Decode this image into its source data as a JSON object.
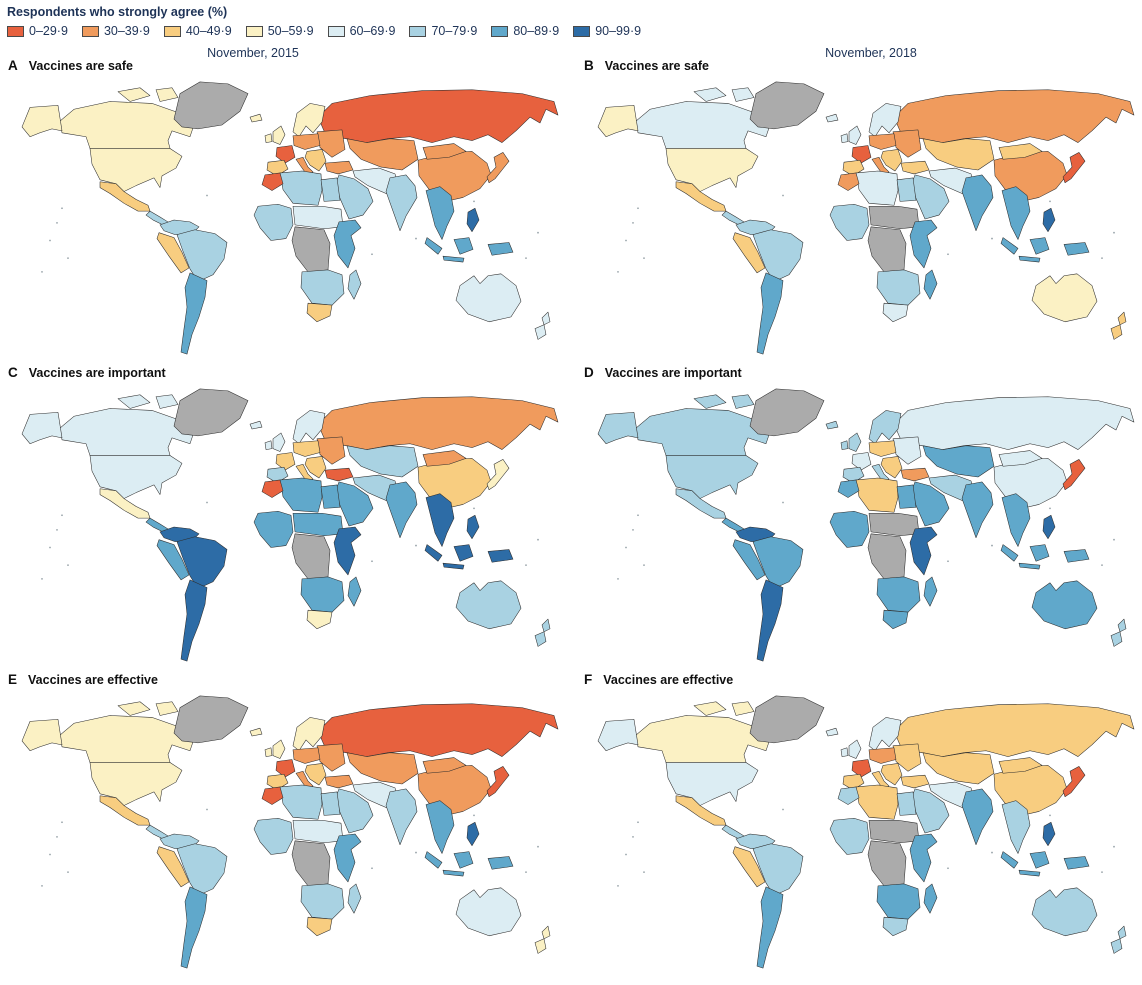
{
  "figure": {
    "column_headers": [
      "November, 2015",
      "November, 2018"
    ],
    "background_color": "#ffffff",
    "ocean_color": "#ffffff",
    "border_color": "#2d2d2d"
  },
  "legend": {
    "title": "Respondents who strongly agree (%)",
    "no_data_color": "#ababab",
    "bins": [
      {
        "label": "0–29·9",
        "color": "#e7613e"
      },
      {
        "label": "30–39·9",
        "color": "#f09b5d"
      },
      {
        "label": "40–49·9",
        "color": "#f8cd80"
      },
      {
        "label": "50–59·9",
        "color": "#fbf1c4"
      },
      {
        "label": "60–69·9",
        "color": "#dcedf3"
      },
      {
        "label": "70–79·9",
        "color": "#a9d2e2"
      },
      {
        "label": "80–89·9",
        "color": "#60a8cb"
      },
      {
        "label": "90–99·9",
        "color": "#2d6ca6"
      }
    ]
  },
  "panels": [
    {
      "letter": "A",
      "title": "Vaccines are safe",
      "column": "November, 2015",
      "regions": {
        "greenland": -1,
        "iceland": 3,
        "canada": 3,
        "usa": 3,
        "mexico": 2,
        "central_america": 5,
        "colombia_venezuela": 5,
        "andean": 2,
        "brazil": 5,
        "argentina_chile": 6,
        "uk_ireland": 3,
        "scandinavia": 3,
        "iberia": 2,
        "france": 0,
        "central_europe": 1,
        "italy": 1,
        "balkans": 2,
        "eastern_europe": 1,
        "turkey": 1,
        "russia": 0,
        "central_asia": 1,
        "iran": 4,
        "middle_east": 5,
        "china": 1,
        "mongolia": 1,
        "india": 5,
        "se_asia": 6,
        "indonesia": 6,
        "philippines": 7,
        "japan": 1,
        "north_africa_west": 0,
        "north_africa": 5,
        "egypt": 5,
        "west_africa": 5,
        "sahel_sudan": 4,
        "east_africa": 6,
        "central_africa": -1,
        "southern_africa": 5,
        "south_africa": 2,
        "madagascar": 5,
        "australia": 4,
        "new_zealand": 4
      }
    },
    {
      "letter": "B",
      "title": "Vaccines are safe",
      "column": "November, 2018",
      "regions": {
        "greenland": -1,
        "iceland": 4,
        "canada": 4,
        "usa": 3,
        "mexico": 2,
        "central_america": 5,
        "colombia_venezuela": 5,
        "andean": 2,
        "brazil": 5,
        "argentina_chile": 6,
        "uk_ireland": 4,
        "scandinavia": 4,
        "iberia": 2,
        "france": 0,
        "central_europe": 1,
        "italy": 1,
        "balkans": 2,
        "eastern_europe": 1,
        "turkey": 2,
        "russia": 1,
        "central_asia": 2,
        "iran": 4,
        "middle_east": 5,
        "china": 1,
        "mongolia": 2,
        "india": 6,
        "se_asia": 6,
        "indonesia": 6,
        "philippines": 7,
        "japan": 0,
        "north_africa_west": 1,
        "north_africa": 4,
        "egypt": 5,
        "west_africa": 5,
        "sahel_sudan": -1,
        "east_africa": 6,
        "central_africa": -1,
        "southern_africa": 5,
        "south_africa": 4,
        "madagascar": 6,
        "australia": 3,
        "new_zealand": 2
      }
    },
    {
      "letter": "C",
      "title": "Vaccines are important",
      "column": "November, 2015",
      "regions": {
        "greenland": -1,
        "iceland": 4,
        "canada": 4,
        "usa": 4,
        "mexico": 3,
        "central_america": 6,
        "colombia_venezuela": 7,
        "andean": 6,
        "brazil": 7,
        "argentina_chile": 7,
        "uk_ireland": 4,
        "scandinavia": 4,
        "iberia": 5,
        "france": 2,
        "central_europe": 2,
        "italy": 2,
        "balkans": 2,
        "eastern_europe": 1,
        "turkey": 0,
        "russia": 1,
        "central_asia": 5,
        "iran": 5,
        "middle_east": 6,
        "china": 2,
        "mongolia": 1,
        "india": 6,
        "se_asia": 7,
        "indonesia": 7,
        "philippines": 7,
        "japan": 3,
        "north_africa_west": 0,
        "north_africa": 6,
        "egypt": 6,
        "west_africa": 6,
        "sahel_sudan": 6,
        "east_africa": 7,
        "central_africa": -1,
        "southern_africa": 6,
        "south_africa": 3,
        "madagascar": 6,
        "australia": 5,
        "new_zealand": 5
      }
    },
    {
      "letter": "D",
      "title": "Vaccines are important",
      "column": "November, 2018",
      "regions": {
        "greenland": -1,
        "iceland": 5,
        "canada": 5,
        "usa": 5,
        "mexico": 5,
        "central_america": 6,
        "colombia_venezuela": 7,
        "andean": 6,
        "brazil": 6,
        "argentina_chile": 7,
        "uk_ireland": 5,
        "scandinavia": 5,
        "iberia": 5,
        "france": 4,
        "central_europe": 2,
        "italy": 5,
        "balkans": 2,
        "eastern_europe": 4,
        "turkey": 1,
        "russia": 4,
        "central_asia": 6,
        "iran": 5,
        "middle_east": 6,
        "china": 4,
        "mongolia": 4,
        "india": 6,
        "se_asia": 6,
        "indonesia": 6,
        "philippines": 7,
        "japan": 0,
        "north_africa_west": 6,
        "north_africa": 2,
        "egypt": 6,
        "west_africa": 6,
        "sahel_sudan": -1,
        "east_africa": 7,
        "central_africa": -1,
        "southern_africa": 6,
        "south_africa": 6,
        "madagascar": 6,
        "australia": 6,
        "new_zealand": 5
      }
    },
    {
      "letter": "E",
      "title": "Vaccines are effective",
      "column": "November, 2015",
      "regions": {
        "greenland": -1,
        "iceland": 3,
        "canada": 3,
        "usa": 3,
        "mexico": 2,
        "central_america": 5,
        "colombia_venezuela": 5,
        "andean": 2,
        "brazil": 5,
        "argentina_chile": 6,
        "uk_ireland": 3,
        "scandinavia": 3,
        "iberia": 2,
        "france": 0,
        "central_europe": 1,
        "italy": 1,
        "balkans": 2,
        "eastern_europe": 1,
        "turkey": 1,
        "russia": 0,
        "central_asia": 1,
        "iran": 4,
        "middle_east": 5,
        "china": 1,
        "mongolia": 1,
        "india": 5,
        "se_asia": 6,
        "indonesia": 6,
        "philippines": 7,
        "japan": 0,
        "north_africa_west": 0,
        "north_africa": 5,
        "egypt": 5,
        "west_africa": 5,
        "sahel_sudan": 4,
        "east_africa": 6,
        "central_africa": -1,
        "southern_africa": 5,
        "south_africa": 2,
        "madagascar": 5,
        "australia": 4,
        "new_zealand": 3
      }
    },
    {
      "letter": "F",
      "title": "Vaccines are effective",
      "column": "November, 2018",
      "regions": {
        "greenland": -1,
        "iceland": 4,
        "canada": 3,
        "usa": 4,
        "mexico": 2,
        "central_america": 5,
        "colombia_venezuela": 5,
        "andean": 2,
        "brazil": 5,
        "argentina_chile": 6,
        "uk_ireland": 4,
        "scandinavia": 4,
        "iberia": 2,
        "france": 0,
        "central_europe": 1,
        "italy": 2,
        "balkans": 2,
        "eastern_europe": 2,
        "turkey": 2,
        "russia": 2,
        "central_asia": 2,
        "iran": 4,
        "middle_east": 5,
        "china": 2,
        "mongolia": 2,
        "india": 6,
        "se_asia": 5,
        "indonesia": 6,
        "philippines": 7,
        "japan": 0,
        "north_africa_west": 5,
        "north_africa": 2,
        "egypt": 5,
        "west_africa": 5,
        "sahel_sudan": -1,
        "east_africa": 6,
        "central_africa": -1,
        "southern_africa": 6,
        "south_africa": 5,
        "madagascar": 6,
        "australia": 5,
        "new_zealand": 5
      }
    }
  ]
}
